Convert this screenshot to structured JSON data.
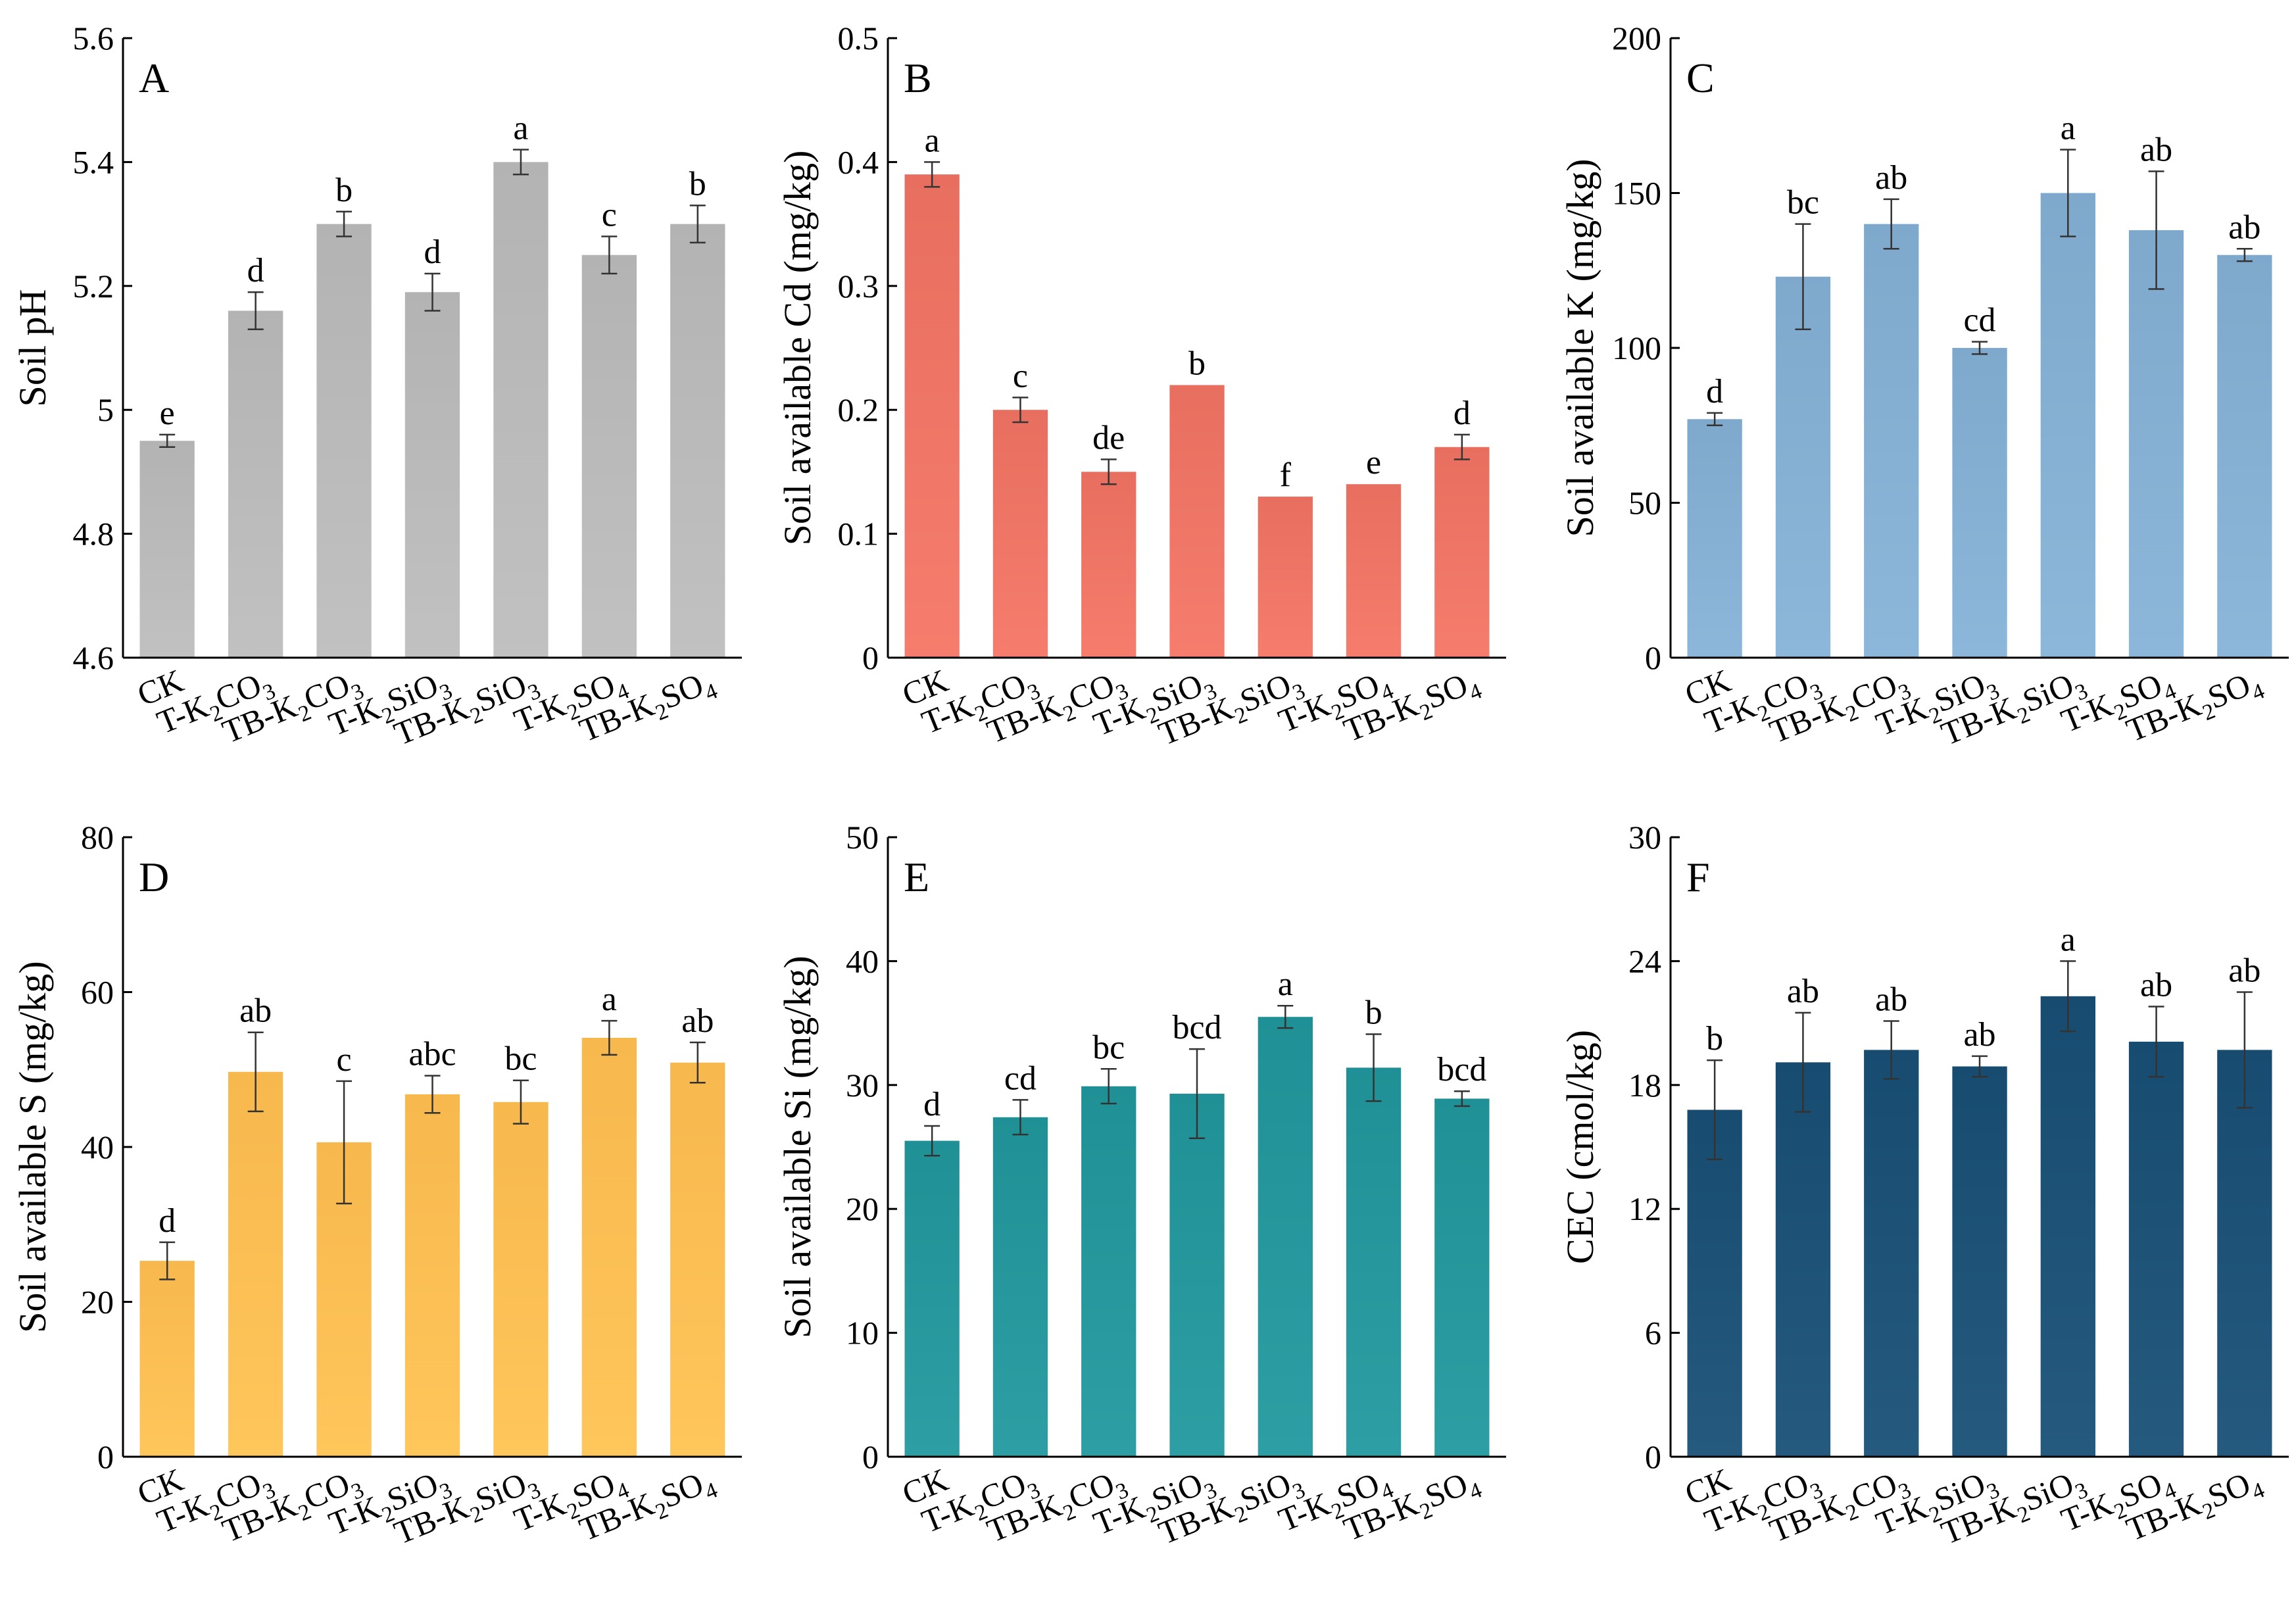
{
  "chart_data": [
    {
      "type": "bar",
      "panel": "A",
      "title": "",
      "ylabel": "Soil pH",
      "xlabel": "",
      "ylim": [
        4.6,
        5.6
      ],
      "yticks": [
        4.6,
        4.8,
        5,
        5.2,
        5.4,
        5.6
      ],
      "ytick_labels": [
        "4.6",
        "4.8",
        "5",
        "5.2",
        "5.4",
        "5.6"
      ],
      "color": "#b3b3b3",
      "categories": [
        {
          "text": "CK"
        },
        {
          "text": "T-K2CO3",
          "parts": [
            "T-K",
            "2",
            "CO",
            "3"
          ]
        },
        {
          "text": "TB-K2CO3",
          "parts": [
            "TB-K",
            "2",
            "CO",
            "3"
          ]
        },
        {
          "text": "T-K2SiO3",
          "parts": [
            "T-K",
            "2",
            "SiO",
            "3"
          ]
        },
        {
          "text": "TB-K2SiO3",
          "parts": [
            "TB-K",
            "2",
            "SiO",
            "3"
          ]
        },
        {
          "text": "T-K2SO4",
          "parts": [
            "T-K",
            "2",
            "SO",
            "4"
          ]
        },
        {
          "text": "TB-K2SO4",
          "parts": [
            "TB-K",
            "2",
            "SO",
            "4"
          ]
        }
      ],
      "values": [
        4.95,
        5.16,
        5.3,
        5.19,
        5.4,
        5.25,
        5.3
      ],
      "errors": [
        0.01,
        0.03,
        0.02,
        0.03,
        0.02,
        0.03,
        0.03
      ],
      "letters": [
        "e",
        "d",
        "b",
        "d",
        "a",
        "c",
        "b"
      ]
    },
    {
      "type": "bar",
      "panel": "B",
      "title": "",
      "ylabel": "Soil available Cd (mg/kg)",
      "xlabel": "",
      "ylim": [
        0,
        0.5
      ],
      "yticks": [
        0,
        0.1,
        0.2,
        0.3,
        0.4,
        0.5
      ],
      "ytick_labels": [
        "0",
        "0.1",
        "0.2",
        "0.3",
        "0.4",
        "0.5"
      ],
      "color": "#e86f5f",
      "categories": [
        {
          "text": "CK"
        },
        {
          "text": "T-K2CO3",
          "parts": [
            "T-K",
            "2",
            "CO",
            "3"
          ]
        },
        {
          "text": "TB-K2CO3",
          "parts": [
            "TB-K",
            "2",
            "CO",
            "3"
          ]
        },
        {
          "text": "T-K2SiO3",
          "parts": [
            "T-K",
            "2",
            "SiO",
            "3"
          ]
        },
        {
          "text": "TB-K2SiO3",
          "parts": [
            "TB-K",
            "2",
            "SiO",
            "3"
          ]
        },
        {
          "text": "T-K2SO4",
          "parts": [
            "T-K",
            "2",
            "SO",
            "4"
          ]
        },
        {
          "text": "TB-K2SO4",
          "parts": [
            "TB-K",
            "2",
            "SO",
            "4"
          ]
        }
      ],
      "values": [
        0.39,
        0.2,
        0.15,
        0.22,
        0.13,
        0.14,
        0.17
      ],
      "errors": [
        0.01,
        0.01,
        0.01,
        0,
        0,
        0,
        0.01
      ],
      "letters": [
        "a",
        "c",
        "de",
        "b",
        "f",
        "e",
        "d"
      ]
    },
    {
      "type": "bar",
      "panel": "C",
      "title": "",
      "ylabel": "Soil available K (mg/kg)",
      "xlabel": "",
      "ylim": [
        0,
        200
      ],
      "yticks": [
        0,
        50,
        100,
        150,
        200
      ],
      "ytick_labels": [
        "0",
        "50",
        "100",
        "150",
        "200"
      ],
      "color": "#7fa9cc",
      "categories": [
        {
          "text": "CK"
        },
        {
          "text": "T-K2CO3",
          "parts": [
            "T-K",
            "2",
            "CO",
            "3"
          ]
        },
        {
          "text": "TB-K2CO3",
          "parts": [
            "TB-K",
            "2",
            "CO",
            "3"
          ]
        },
        {
          "text": "T-K2SiO3",
          "parts": [
            "T-K",
            "2",
            "SiO",
            "3"
          ]
        },
        {
          "text": "TB-K2SiO3",
          "parts": [
            "TB-K",
            "2",
            "SiO",
            "3"
          ]
        },
        {
          "text": "T-K2SO4",
          "parts": [
            "T-K",
            "2",
            "SO",
            "4"
          ]
        },
        {
          "text": "TB-K2SO4",
          "parts": [
            "TB-K",
            "2",
            "SO",
            "4"
          ]
        }
      ],
      "values": [
        77,
        123,
        140,
        100,
        150,
        138,
        130
      ],
      "errors": [
        2,
        17,
        8,
        2,
        14,
        19,
        2
      ],
      "letters": [
        "d",
        "bc",
        "ab",
        "cd",
        "a",
        "ab",
        "ab"
      ]
    },
    {
      "type": "bar",
      "panel": "D",
      "title": "",
      "ylabel": "Soil available S (mg/kg)",
      "xlabel": "",
      "ylim": [
        0,
        80
      ],
      "yticks": [
        0,
        20,
        40,
        60,
        80
      ],
      "ytick_labels": [
        "0",
        "20",
        "40",
        "60",
        "80"
      ],
      "color": "#f7b84d",
      "categories": [
        {
          "text": "CK"
        },
        {
          "text": "T-K2CO3",
          "parts": [
            "T-K",
            "2",
            "CO",
            "3"
          ]
        },
        {
          "text": "TB-K2CO3",
          "parts": [
            "TB-K",
            "2",
            "CO",
            "3"
          ]
        },
        {
          "text": "T-K2SiO3",
          "parts": [
            "T-K",
            "2",
            "SiO",
            "3"
          ]
        },
        {
          "text": "TB-K2SiO3",
          "parts": [
            "TB-K",
            "2",
            "SiO",
            "3"
          ]
        },
        {
          "text": "T-K2SO4",
          "parts": [
            "T-K",
            "2",
            "SO",
            "4"
          ]
        },
        {
          "text": "TB-K2SO4",
          "parts": [
            "TB-K",
            "2",
            "SO",
            "4"
          ]
        }
      ],
      "values": [
        25.3,
        49.7,
        40.6,
        46.8,
        45.8,
        54.1,
        50.9
      ],
      "errors": [
        2.4,
        5.1,
        7.9,
        2.4,
        2.8,
        2.2,
        2.6
      ],
      "letters": [
        "d",
        "ab",
        "c",
        "abc",
        "bc",
        "a",
        "ab"
      ]
    },
    {
      "type": "bar",
      "panel": "E",
      "title": "",
      "ylabel": "Soil available Si (mg/kg)",
      "xlabel": "",
      "ylim": [
        0,
        50
      ],
      "yticks": [
        0,
        10,
        20,
        30,
        40,
        50
      ],
      "ytick_labels": [
        "0",
        "10",
        "20",
        "30",
        "40",
        "50"
      ],
      "color": "#1f9196",
      "categories": [
        {
          "text": "CK"
        },
        {
          "text": "T-K2CO3",
          "parts": [
            "T-K",
            "2",
            "CO",
            "3"
          ]
        },
        {
          "text": "TB-K2CO3",
          "parts": [
            "TB-K",
            "2",
            "CO",
            "3"
          ]
        },
        {
          "text": "T-K2SiO3",
          "parts": [
            "T-K",
            "2",
            "SiO",
            "3"
          ]
        },
        {
          "text": "TB-K2SiO3",
          "parts": [
            "TB-K",
            "2",
            "SiO",
            "3"
          ]
        },
        {
          "text": "T-K2SO4",
          "parts": [
            "T-K",
            "2",
            "SO",
            "4"
          ]
        },
        {
          "text": "TB-K2SO4",
          "parts": [
            "TB-K",
            "2",
            "SO",
            "4"
          ]
        }
      ],
      "values": [
        25.5,
        27.4,
        29.9,
        29.3,
        35.5,
        31.4,
        28.9
      ],
      "errors": [
        1.2,
        1.4,
        1.4,
        3.6,
        0.9,
        2.7,
        0.6
      ],
      "letters": [
        "d",
        "cd",
        "bc",
        "bcd",
        "a",
        "b",
        "bcd"
      ]
    },
    {
      "type": "bar",
      "panel": "F",
      "title": "",
      "ylabel": "CEC (cmol/kg)",
      "xlabel": "",
      "ylim": [
        0,
        30
      ],
      "yticks": [
        0,
        6,
        12,
        18,
        24,
        30
      ],
      "ytick_labels": [
        "0",
        "6",
        "12",
        "18",
        "24",
        "30"
      ],
      "color": "#174c70",
      "categories": [
        {
          "text": "CK"
        },
        {
          "text": "T-K2CO3",
          "parts": [
            "T-K",
            "2",
            "CO",
            "3"
          ]
        },
        {
          "text": "TB-K2CO3",
          "parts": [
            "TB-K",
            "2",
            "CO",
            "3"
          ]
        },
        {
          "text": "T-K2SiO3",
          "parts": [
            "T-K",
            "2",
            "SiO",
            "3"
          ]
        },
        {
          "text": "TB-K2SiO3",
          "parts": [
            "TB-K",
            "2",
            "SiO",
            "3"
          ]
        },
        {
          "text": "T-K2SO4",
          "parts": [
            "T-K",
            "2",
            "SO",
            "4"
          ]
        },
        {
          "text": "TB-K2SO4",
          "parts": [
            "TB-K",
            "2",
            "SO",
            "4"
          ]
        }
      ],
      "values": [
        16.8,
        19.1,
        19.7,
        18.9,
        22.3,
        20.1,
        19.7
      ],
      "errors": [
        2.4,
        2.4,
        1.4,
        0.5,
        1.7,
        1.7,
        2.8
      ],
      "letters": [
        "b",
        "ab",
        "ab",
        "ab",
        "a",
        "ab",
        "ab"
      ]
    }
  ]
}
